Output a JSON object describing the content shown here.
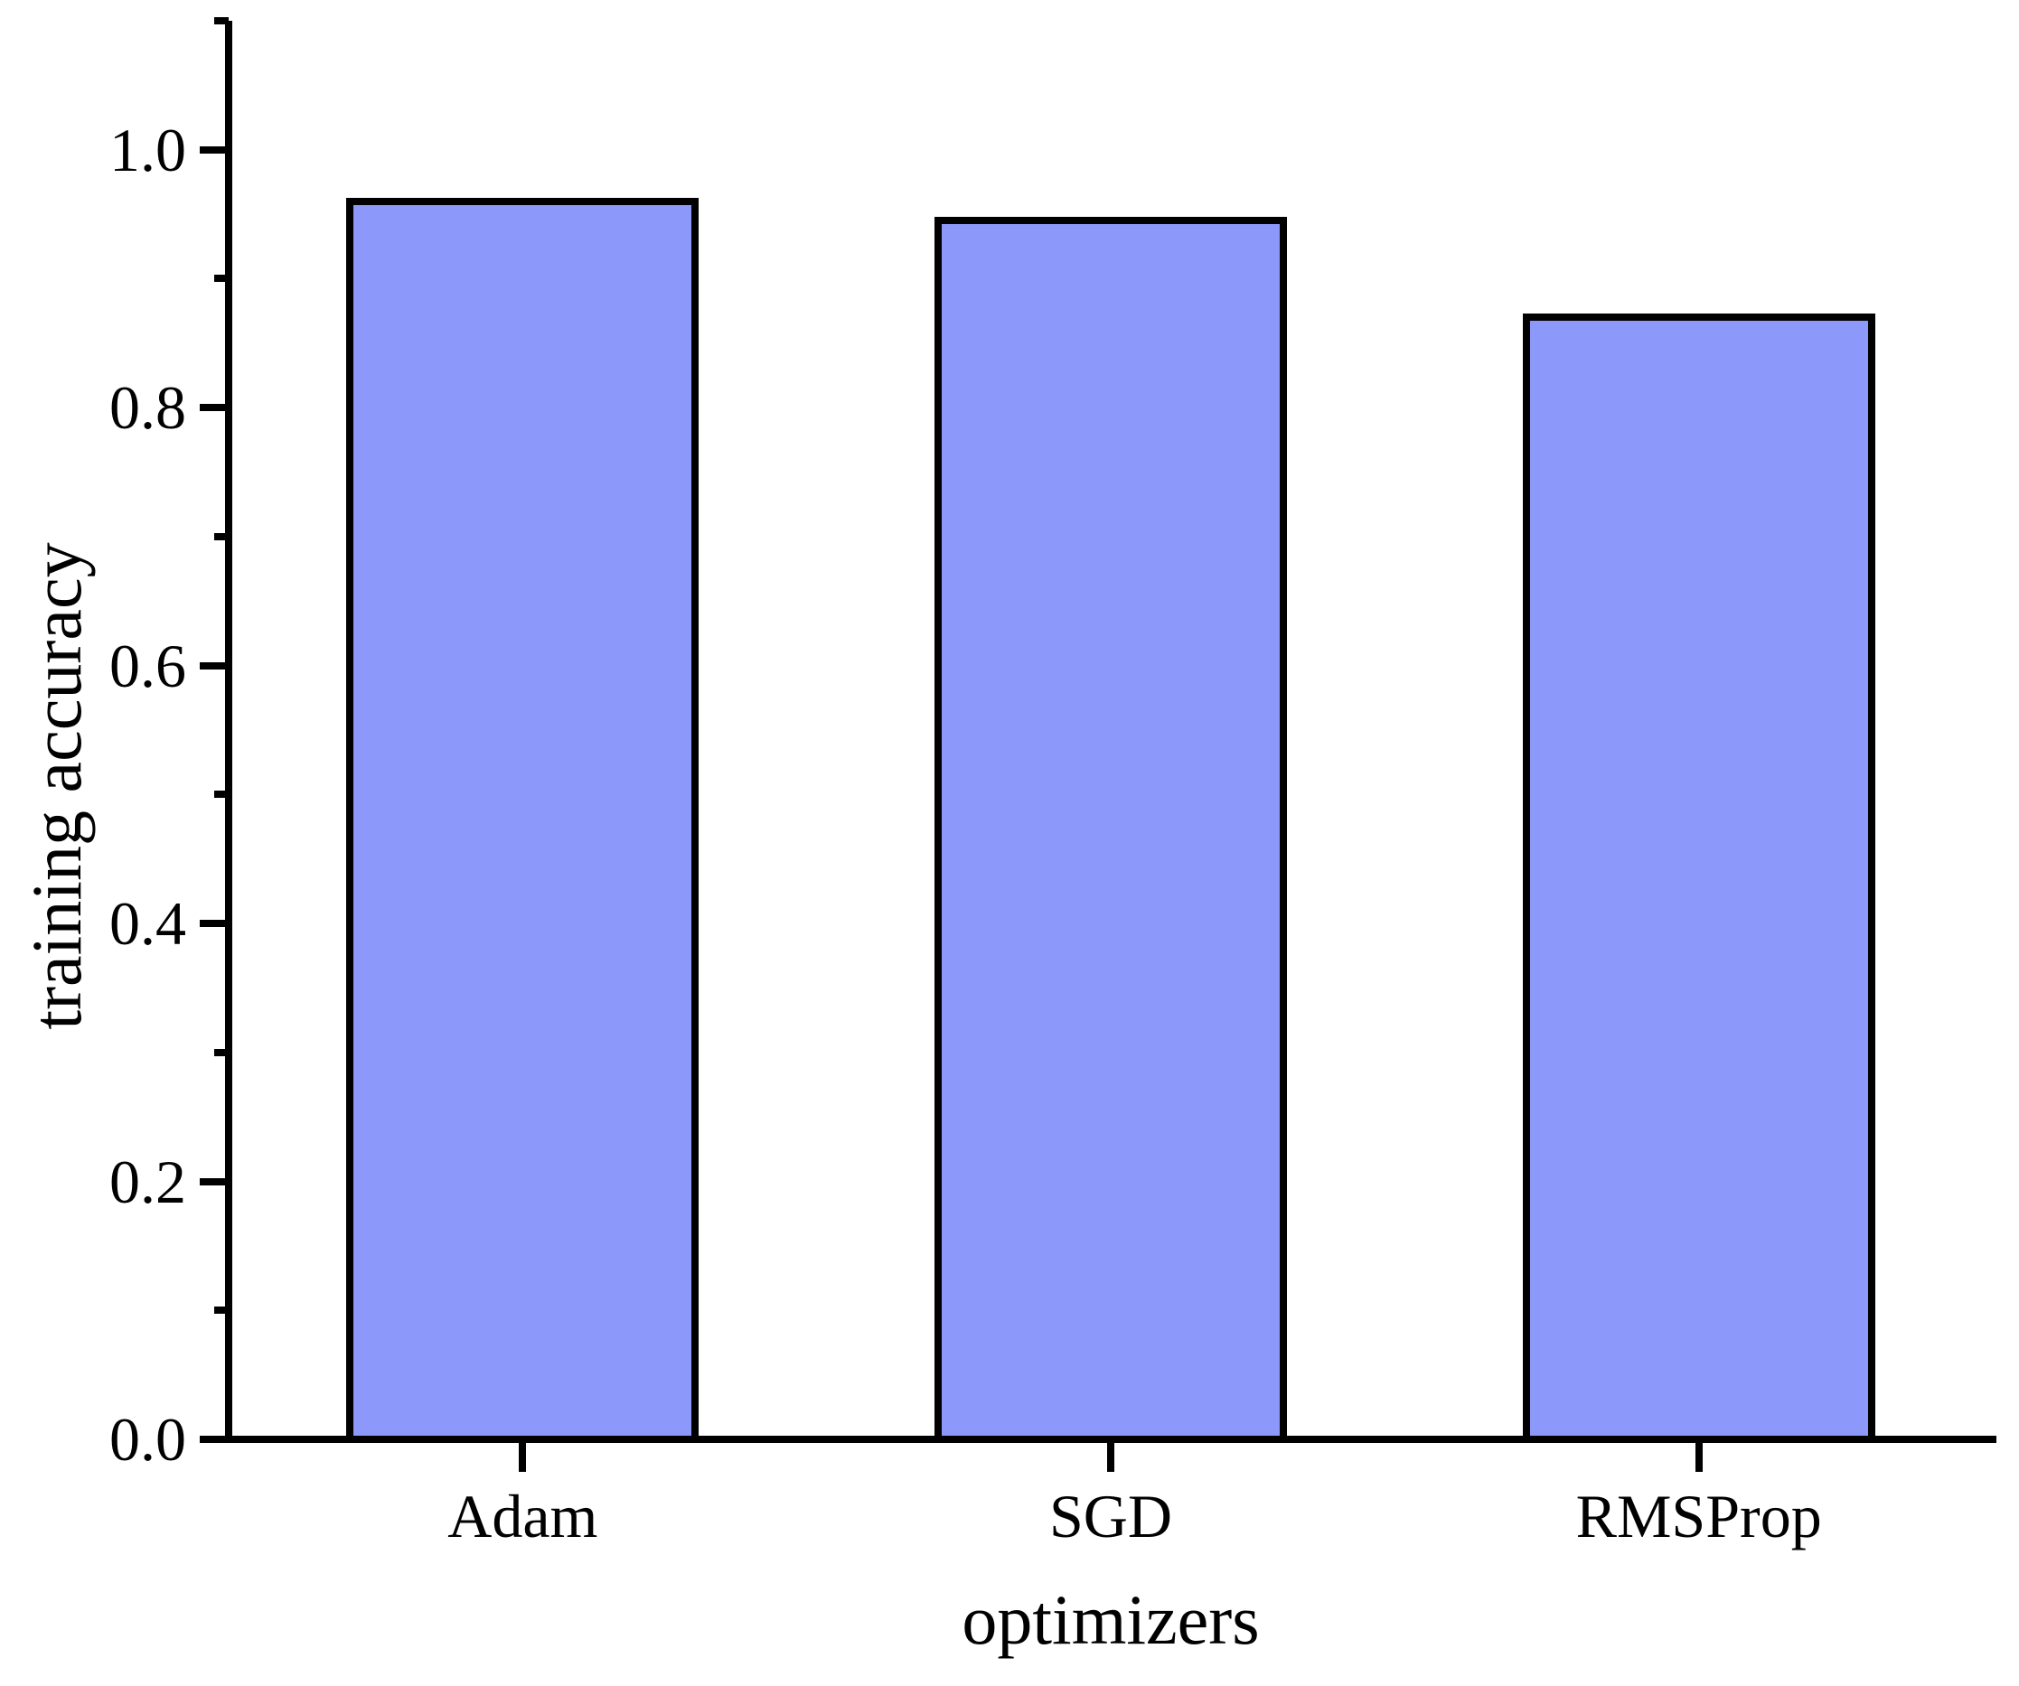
{
  "chart_data": {
    "type": "bar",
    "title": "",
    "categories": [
      "Adam",
      "SGD",
      "RMSProp"
    ],
    "values": [
      0.96,
      0.945,
      0.87
    ],
    "xlabel": "optimizers",
    "ylabel": "training accuracy",
    "ylim": [
      0,
      1.1
    ],
    "yticks": [
      0.0,
      0.2,
      0.4,
      0.6,
      0.8,
      1.0
    ],
    "ytick_labels": [
      "0.0",
      "0.2",
      "0.4",
      "0.6",
      "0.8",
      "1.0"
    ],
    "yminor_ticks": [
      0.1,
      0.3,
      0.5,
      0.7,
      0.9,
      1.1
    ],
    "grid": false,
    "legend": false,
    "bar_color": "#8d99fa",
    "bar_border_color": "#000000",
    "axis_color": "#000000",
    "background": "#ffffff"
  }
}
